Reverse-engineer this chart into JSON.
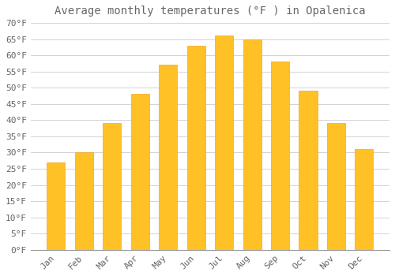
{
  "title": "Average monthly temperatures (°F ) in Opalenica",
  "months": [
    "Jan",
    "Feb",
    "Mar",
    "Apr",
    "May",
    "Jun",
    "Jul",
    "Aug",
    "Sep",
    "Oct",
    "Nov",
    "Dec"
  ],
  "values": [
    27,
    30,
    39,
    48,
    57,
    63,
    66,
    65,
    58,
    49,
    39,
    31
  ],
  "bar_color": "#FFC125",
  "bar_edge_color": "#F5A623",
  "background_color": "#FFFFFF",
  "grid_color": "#CCCCCC",
  "text_color": "#666666",
  "ylim": [
    0,
    70
  ],
  "ytick_step": 5,
  "title_fontsize": 10,
  "tick_fontsize": 8
}
